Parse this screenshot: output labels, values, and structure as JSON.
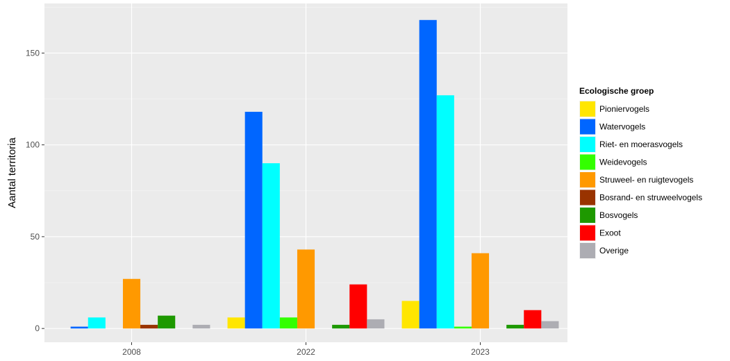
{
  "chart_data": {
    "type": "bar",
    "xlabel": "",
    "ylabel": "Aantal territoria",
    "ylim": [
      -7.5,
      177
    ],
    "yticks": [
      0,
      50,
      100,
      150
    ],
    "categories": [
      "2008",
      "2022",
      "2023"
    ],
    "legend": {
      "title": "Ecologische groep",
      "position": "right"
    },
    "series": [
      {
        "name": "Pioniervogels",
        "color": "#FFE600",
        "values": [
          0,
          6,
          15
        ]
      },
      {
        "name": "Watervogels",
        "color": "#0066FF",
        "values": [
          1,
          118,
          168
        ]
      },
      {
        "name": "Riet- en moerasvogels",
        "color": "#00FFFF",
        "values": [
          6,
          90,
          127
        ]
      },
      {
        "name": "Weidevogels",
        "color": "#33FF00",
        "values": [
          0,
          6,
          1
        ]
      },
      {
        "name": "Struweel- en ruigtevogels",
        "color": "#FF9900",
        "values": [
          27,
          43,
          41
        ]
      },
      {
        "name": "Bosrand- en struweelvogels",
        "color": "#993300",
        "values": [
          2,
          0,
          0
        ]
      },
      {
        "name": "Bosvogels",
        "color": "#1E9900",
        "values": [
          7,
          2,
          2
        ]
      },
      {
        "name": "Exoot",
        "color": "#FF0000",
        "values": [
          0,
          24,
          10
        ]
      },
      {
        "name": "Overige",
        "color": "#ADADB3",
        "values": [
          2,
          5,
          4
        ]
      }
    ],
    "grid": true
  }
}
